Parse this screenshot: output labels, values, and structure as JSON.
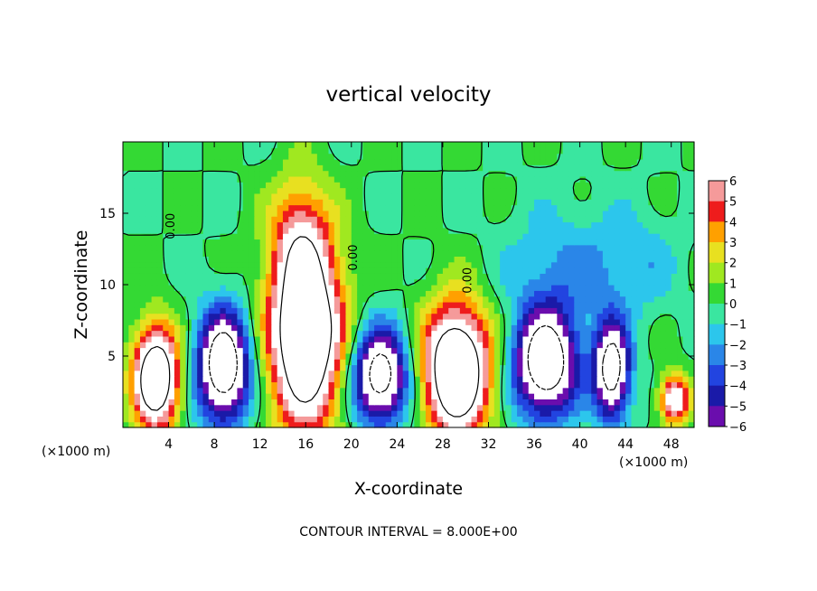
{
  "chart_data": {
    "type": "heatmap",
    "title": "vertical velocity",
    "xlabel": "X-coordinate",
    "ylabel": "Z-coordinate",
    "x_unit": "(×1000 m)",
    "footer": "CONTOUR INTERVAL = 8.000E+00",
    "xlim": [
      0,
      50
    ],
    "ylim": [
      0,
      20
    ],
    "x_ticks": [
      4,
      8,
      12,
      16,
      20,
      24,
      28,
      32,
      36,
      40,
      44,
      48
    ],
    "y_ticks": [
      5,
      10,
      15
    ],
    "colorbar": {
      "min": -6,
      "max": 6,
      "ticks": [
        6,
        5,
        4,
        3,
        2,
        1,
        0,
        -1,
        -2,
        -3,
        -4,
        -5,
        -6
      ],
      "tick_labels": [
        "6",
        "5",
        "4",
        "3",
        "2",
        "1",
        "0",
        "−1",
        "−2",
        "−3",
        "−4",
        "−5",
        "−6"
      ]
    },
    "contour_labels": [
      {
        "x": 4.5,
        "z": 14.1,
        "text": "0.00"
      },
      {
        "x": 20.5,
        "z": 11.9,
        "text": "0.00"
      },
      {
        "x": 30.5,
        "z": 10.3,
        "text": "0.00"
      }
    ],
    "updrafts": [
      {
        "x": 2.9,
        "z": 3.5,
        "sx": 1.4,
        "sz": 2.5,
        "amp": 12
      },
      {
        "x": 16.0,
        "z": 6.5,
        "sx": 2.2,
        "sz": 4.5,
        "amp": 13
      },
      {
        "x": 15.5,
        "z": 13.5,
        "sx": 1.8,
        "sz": 3.0,
        "amp": 4
      },
      {
        "x": 29.2,
        "z": 4.0,
        "sx": 2.0,
        "sz": 3.2,
        "amp": 13
      },
      {
        "x": 48.3,
        "z": 2.0,
        "sx": 0.9,
        "sz": 1.2,
        "amp": 8
      }
    ],
    "downdrafts": [
      {
        "x": 8.8,
        "z": 4.3,
        "sx": 1.6,
        "sz": 2.7,
        "amp": -11
      },
      {
        "x": 22.5,
        "z": 3.6,
        "sx": 1.7,
        "sz": 2.3,
        "amp": -10
      },
      {
        "x": 37.0,
        "z": 4.5,
        "sx": 1.9,
        "sz": 2.6,
        "amp": -11
      },
      {
        "x": 42.8,
        "z": 4.0,
        "sx": 1.1,
        "sz": 2.4,
        "amp": -10
      },
      {
        "x": 38.5,
        "z": 11.0,
        "sx": 3.5,
        "sz": 3.0,
        "amp": -2.2
      },
      {
        "x": 45.0,
        "z": 11.5,
        "sx": 2.5,
        "sz": 2.5,
        "amp": -1.6
      }
    ]
  }
}
